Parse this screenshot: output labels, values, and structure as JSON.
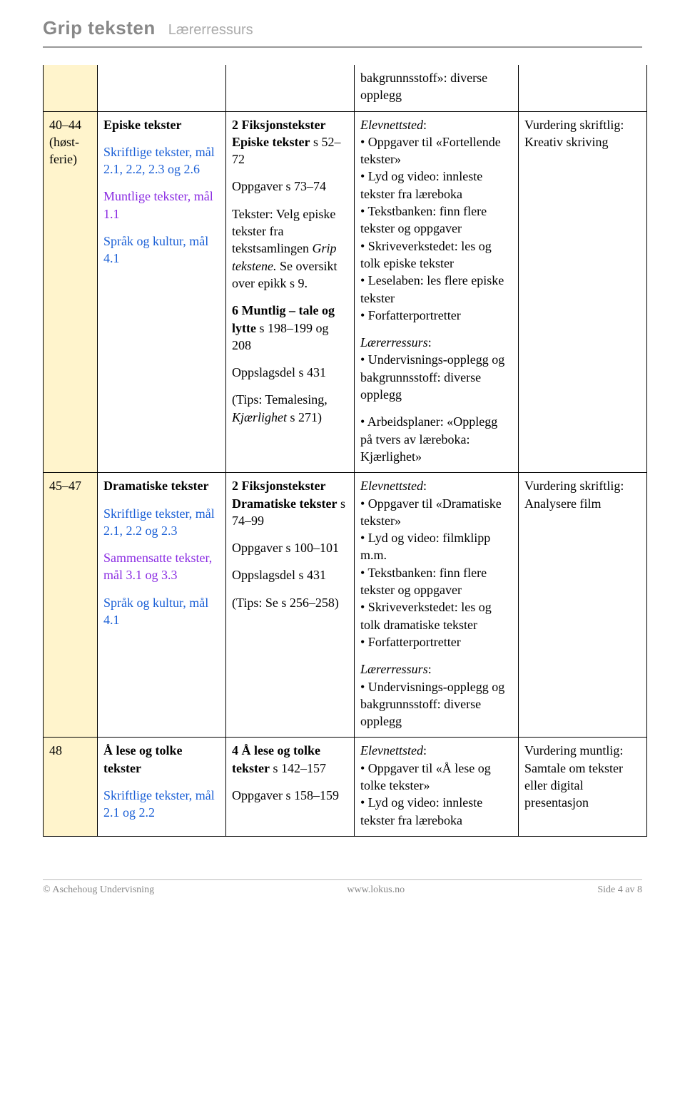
{
  "header": {
    "title": "Grip teksten",
    "sub": "Lærerressurs"
  },
  "footer": {
    "left": "© Aschehoug Undervisning",
    "center": "www.lokus.no",
    "right": "Side 4 av 8"
  },
  "carry": {
    "text": "bakgrunnsstoff»: diverse opplegg"
  },
  "rows": [
    {
      "period": "40–44 (høst-ferie)",
      "col2": {
        "title": "Episke tekster",
        "blue1": "Skriftlige tekster, mål 2.1, 2.2, 2.3 og 2.6",
        "purple": "Muntlige tekster, mål 1.1",
        "blue2": "Språk og kultur, mål 4.1"
      },
      "col3": {
        "b1": "2 Fiksjonstekster Episke tekster",
        "b1b": "s 52–72",
        "b2": "Oppgaver s 73–74",
        "b3a": "Tekster: Velg episke tekster fra tekstsamlingen ",
        "b3em": "Grip tekstene.",
        "b3b": " Se oversikt over epikk s 9.",
        "b4": "6 Muntlig – tale og lytte",
        "b4b": " s 198–199 og 208",
        "b5": "Oppslagsdel s 431",
        "b6a": "(Tips: Temalesing, ",
        "b6em": "Kjærlighet",
        "b6b": " s 271)"
      },
      "col4": {
        "e": "Elevnettsted",
        "e1": "• Oppgaver til «Fortellende tekster»",
        "e2": "• Lyd og video: innleste tekster fra læreboka",
        "e3": "• Tekstbanken: finn flere tekster og oppgaver",
        "e4": "• Skriveverkstedet: les og tolk episke tekster",
        "e5": "• Leselaben: les flere episke tekster",
        "e6": "• Forfatterportretter",
        "l": "Lærerressurs",
        "l1": "• Undervisnings-opplegg og bakgrunnsstoff: diverse opplegg",
        "l2": "• Arbeidsplaner: «Opplegg på tvers av læreboka: Kjærlighet»"
      },
      "col5": {
        "h": "Vurdering skriftlig:",
        "t": "Kreativ skriving"
      }
    },
    {
      "period": "45–47",
      "col2": {
        "title": "Dramatiske tekster",
        "blue1": "Skriftlige tekster, mål 2.1, 2.2 og 2.3",
        "purple": "Sammensatte tekster, mål 3.1 og 3.3",
        "blue2": "Språk og kultur, mål 4.1"
      },
      "col3": {
        "b1": "2 Fiksjonstekster Dramatiske tekster",
        "b1b": " s 74–99",
        "b2": "Oppgaver s 100–101",
        "b3": "Oppslagsdel s 431",
        "b4": "(Tips: Se s 256–258)"
      },
      "col4": {
        "e": "Elevnettsted",
        "e1": "• Oppgaver til «Dramatiske tekster»",
        "e2": "• Lyd og video: filmklipp m.m.",
        "e3": "• Tekstbanken: finn flere tekster og oppgaver",
        "e4": "• Skriveverkstedet: les og tolk dramatiske tekster",
        "e5": "• Forfatterportretter",
        "l": "Lærerressurs",
        "l1": "• Undervisnings-opplegg og bakgrunnsstoff: diverse opplegg"
      },
      "col5": {
        "h": "Vurdering skriftlig:",
        "t": "Analysere film"
      }
    },
    {
      "period": "48",
      "col2": {
        "title": "Å lese og tolke tekster",
        "blue1": "Skriftlige tekster, mål 2.1 og 2.2"
      },
      "col3": {
        "b1": "4 Å lese og tolke tekster",
        "b1b": " s 142–157",
        "b2": "Oppgaver s 158–159"
      },
      "col4": {
        "e": "Elevnettsted",
        "e1": "• Oppgaver til «Å lese og tolke tekster»",
        "e2": "• Lyd og video: innleste tekster fra læreboka"
      },
      "col5": {
        "h": "Vurdering muntlig:",
        "t": "Samtale om tekster eller digital presentasjon"
      }
    }
  ]
}
